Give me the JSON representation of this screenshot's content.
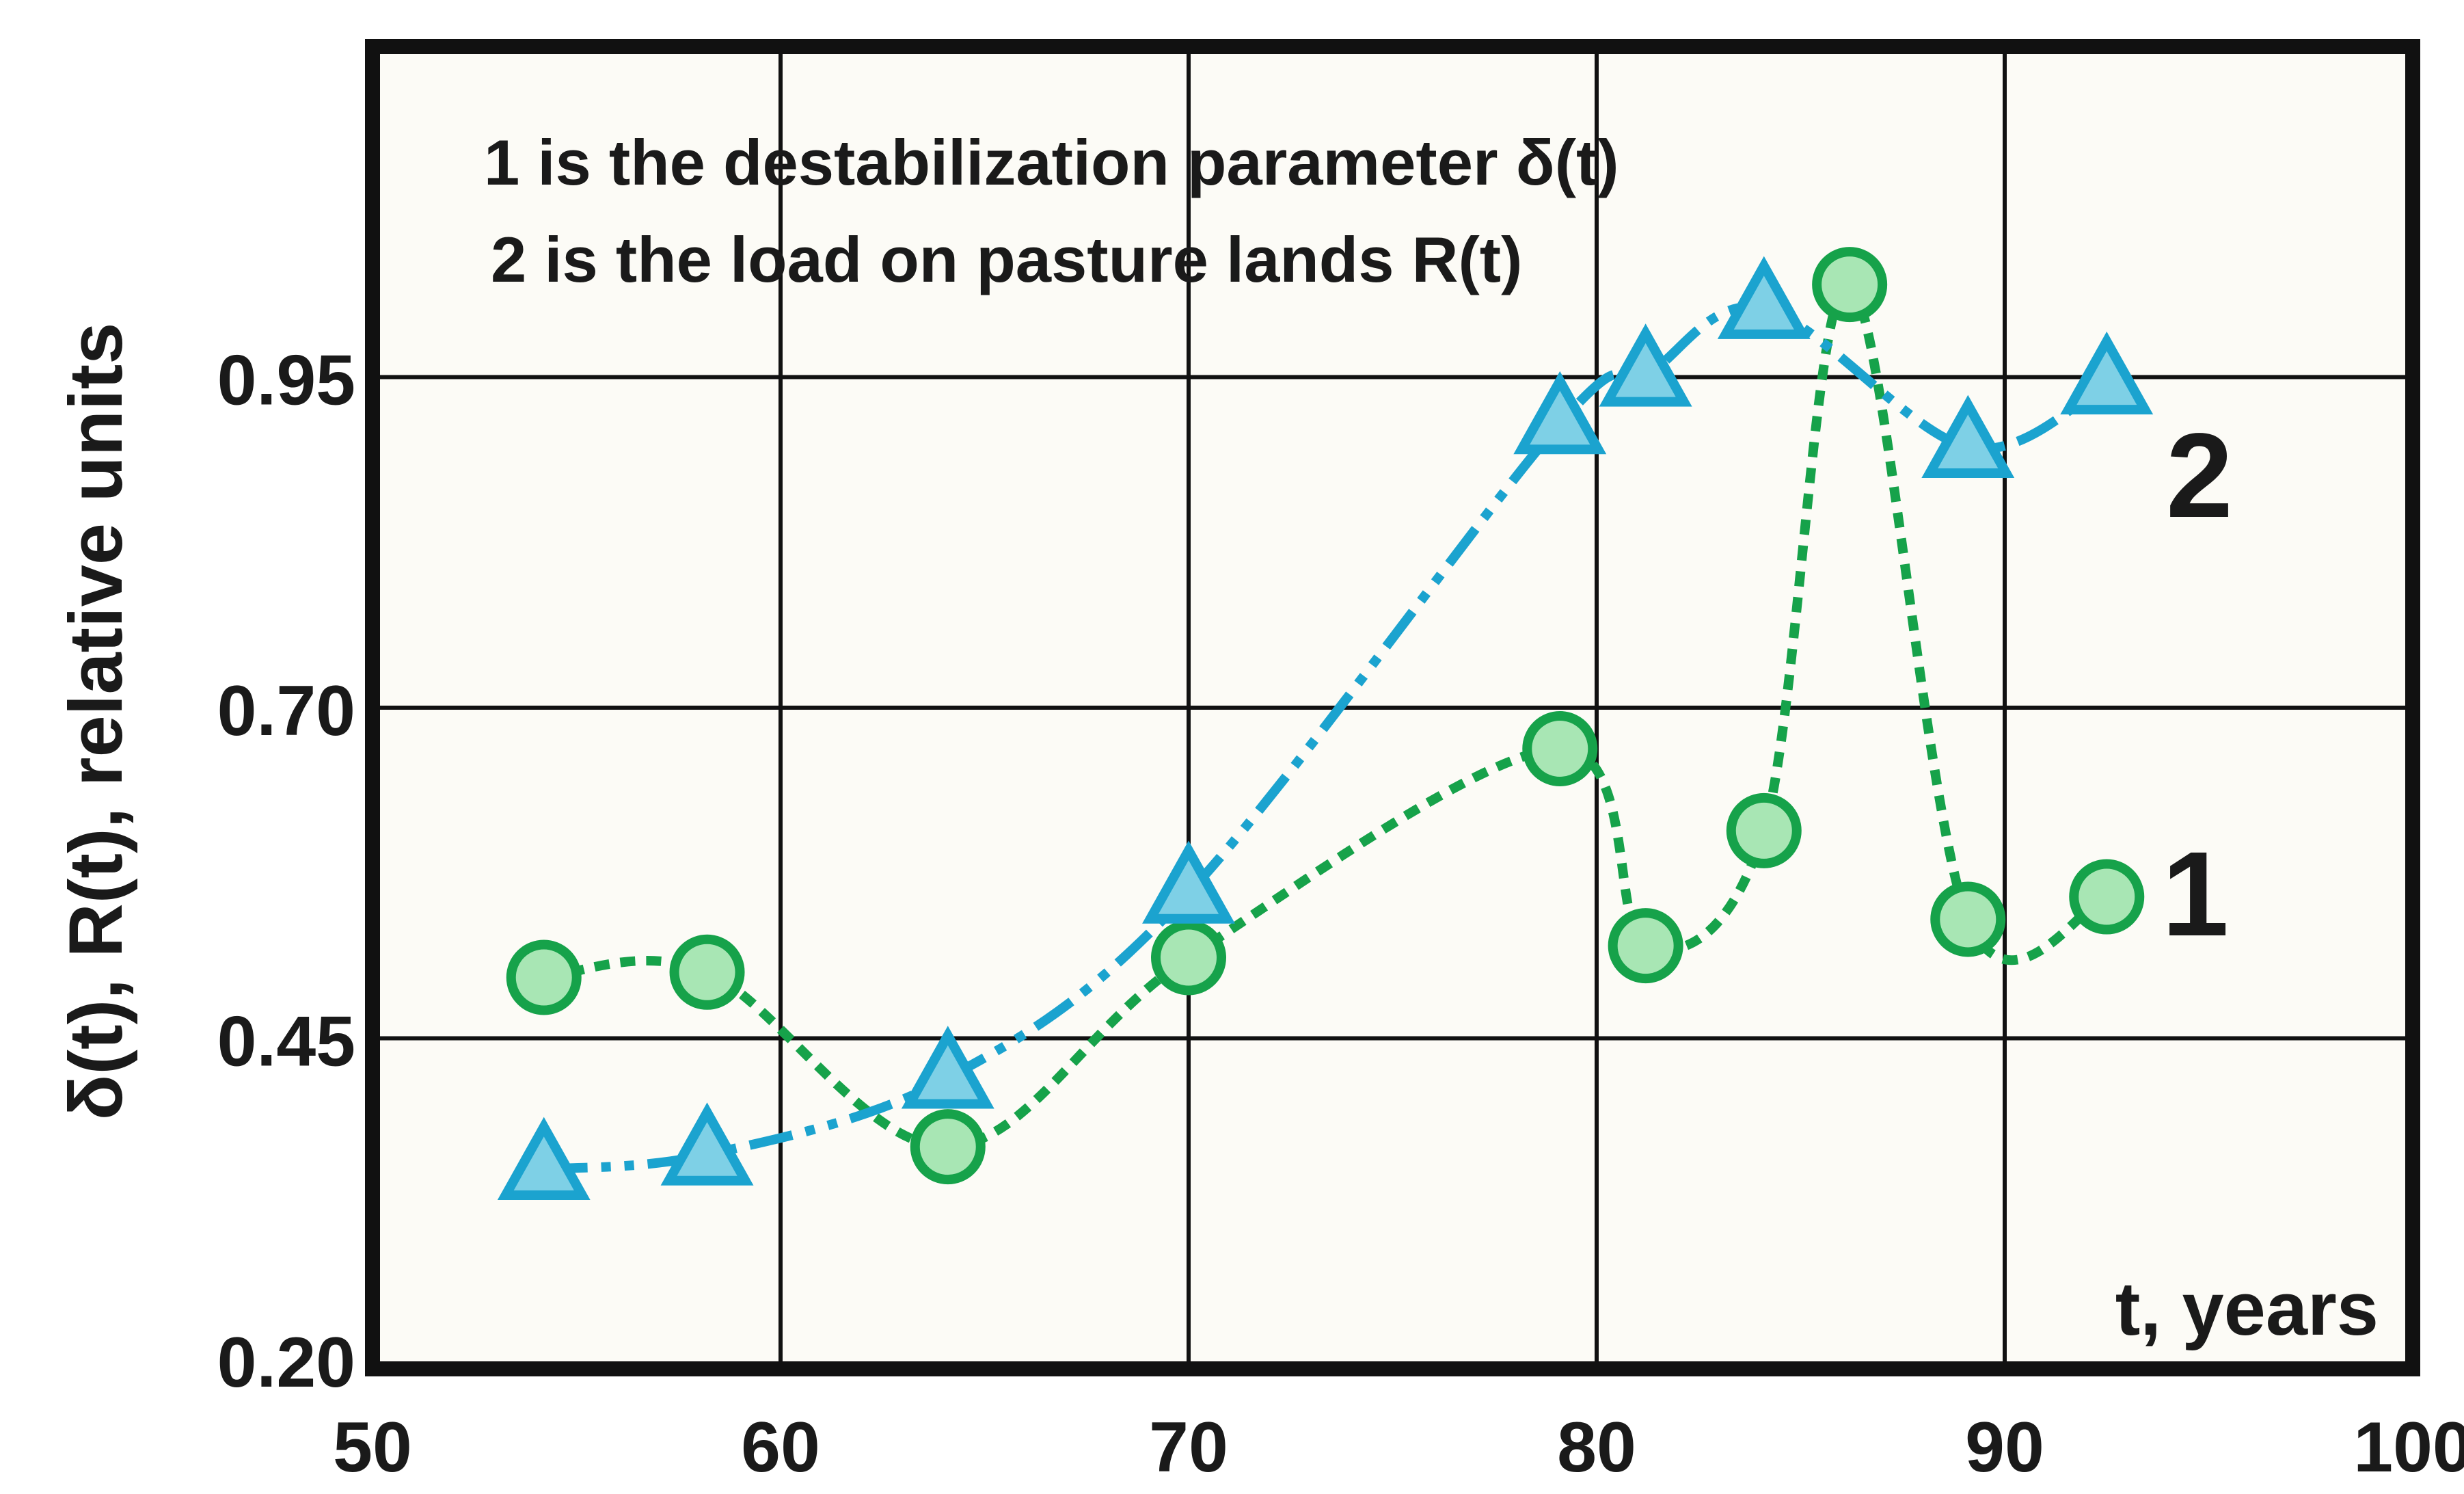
{
  "chart_data": {
    "type": "line",
    "title": "",
    "xlabel": "t, years",
    "ylabel": "δ(t), R(t), relative units",
    "xlim": [
      50,
      100
    ],
    "ylim": [
      0.2,
      1.2
    ],
    "xticks": [
      50,
      60,
      70,
      80,
      90,
      100
    ],
    "xtick_labels": [
      "50",
      "60",
      "70",
      "80",
      "90",
      "100"
    ],
    "yticks": [
      0.2,
      0.45,
      0.7,
      0.95
    ],
    "ytick_labels": [
      "0.20",
      "0.45",
      "0.70",
      "0.95"
    ],
    "grid": true,
    "legend": [
      "1 is the destabilization parameter δ(t)",
      "2 is the load on pasture lands R(t)"
    ],
    "series": [
      {
        "name": "δ(t)",
        "label": "1",
        "color": "#16a24a",
        "fill": "#a8e6b4",
        "marker": "circle",
        "line_style": "dotted",
        "x": [
          54.2,
          58.2,
          64.1,
          70.0,
          79.1,
          81.2,
          84.1,
          86.2,
          89.1,
          92.5
        ],
        "y": [
          0.496,
          0.5,
          0.368,
          0.511,
          0.669,
          0.52,
          0.607,
          1.02,
          0.54,
          0.557
        ]
      },
      {
        "name": "R(t)",
        "label": "2",
        "color": "#1ba3cf",
        "fill": "#7ed0e6",
        "marker": "triangle",
        "line_style": "dash-dot-dot",
        "x": [
          54.2,
          58.2,
          64.1,
          70.0,
          79.1,
          81.2,
          84.1,
          89.1,
          92.5
        ],
        "y": [
          0.351,
          0.362,
          0.42,
          0.56,
          0.915,
          0.951,
          1.002,
          0.897,
          0.945
        ]
      }
    ],
    "background": "#fcfbf6",
    "frame_color": "#111111",
    "grid_color": "#111111"
  }
}
